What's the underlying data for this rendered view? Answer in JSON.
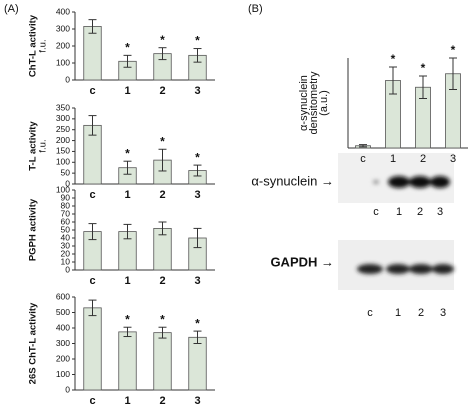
{
  "panels": [
    "(A)",
    "(B)"
  ],
  "chart_data": [
    {
      "type": "bar",
      "ylabel": [
        "ChT-L activity",
        "f.u."
      ],
      "categories": [
        "c",
        "1",
        "2",
        "3"
      ],
      "values": [
        315,
        110,
        155,
        145
      ],
      "errors": [
        40,
        35,
        35,
        40
      ],
      "color": "#dbe6d8",
      "ylim": [
        0,
        400
      ],
      "yticks": [
        0,
        100,
        200,
        300,
        400
      ],
      "annotations": [
        {
          "category": "1",
          "text": "*"
        },
        {
          "category": "2",
          "text": "*"
        },
        {
          "category": "3",
          "text": "*"
        }
      ]
    },
    {
      "type": "bar",
      "ylabel": [
        "T-L activity",
        "f.u."
      ],
      "categories": [
        "c",
        "1",
        "2",
        "3"
      ],
      "values": [
        270,
        75,
        110,
        62
      ],
      "errors": [
        45,
        30,
        50,
        25
      ],
      "color": "#dbe6d8",
      "ylim": [
        0,
        350
      ],
      "yticks": [
        0,
        50,
        100,
        150,
        200,
        250,
        300,
        350
      ],
      "annotations": [
        {
          "category": "1",
          "text": "*"
        },
        {
          "category": "2",
          "text": "*"
        },
        {
          "category": "3",
          "text": "*"
        }
      ]
    },
    {
      "type": "bar",
      "ylabel": [
        "PGPH activity"
      ],
      "categories": [
        "c",
        "1",
        "2",
        "3"
      ],
      "values": [
        48,
        48,
        52,
        40
      ],
      "errors": [
        10,
        9,
        8,
        12
      ],
      "color": "#dbe6d8",
      "ylim": [
        0,
        100
      ],
      "yticks": [
        0,
        10,
        20,
        30,
        40,
        50,
        60,
        70,
        80,
        90,
        100
      ]
    },
    {
      "type": "bar",
      "ylabel": [
        "26S ChT-L activity"
      ],
      "categories": [
        "c",
        "1",
        "2",
        "3"
      ],
      "values": [
        530,
        375,
        370,
        340
      ],
      "errors": [
        50,
        30,
        35,
        40
      ],
      "color": "#dbe6d8",
      "ylim": [
        0,
        600
      ],
      "yticks": [
        0,
        100,
        200,
        300,
        400,
        500,
        600
      ],
      "annotations": [
        {
          "category": "1",
          "text": "*"
        },
        {
          "category": "2",
          "text": "*"
        },
        {
          "category": "3",
          "text": "*"
        }
      ]
    },
    {
      "type": "bar",
      "ylabel": [
        "α-synuclein",
        "densitometry",
        "(a.u.)"
      ],
      "categories": [
        "c",
        "1",
        "2",
        "3"
      ],
      "values": [
        0.1,
        3,
        2.7,
        3.3
      ],
      "errors": [
        0.05,
        0.6,
        0.5,
        0.7
      ],
      "color": "#dbe6d8",
      "ylim": [
        0,
        4
      ],
      "annotations": [
        {
          "category": "1",
          "text": "*"
        },
        {
          "category": "2",
          "text": "*"
        },
        {
          "category": "3",
          "text": "*"
        }
      ]
    }
  ],
  "blots": [
    {
      "label": "α-synuclein →",
      "lanes": [
        "c",
        "1",
        "2",
        "3"
      ]
    },
    {
      "label": "GAPDH →",
      "lanes": [
        "c",
        "1",
        "2",
        "3"
      ]
    }
  ]
}
